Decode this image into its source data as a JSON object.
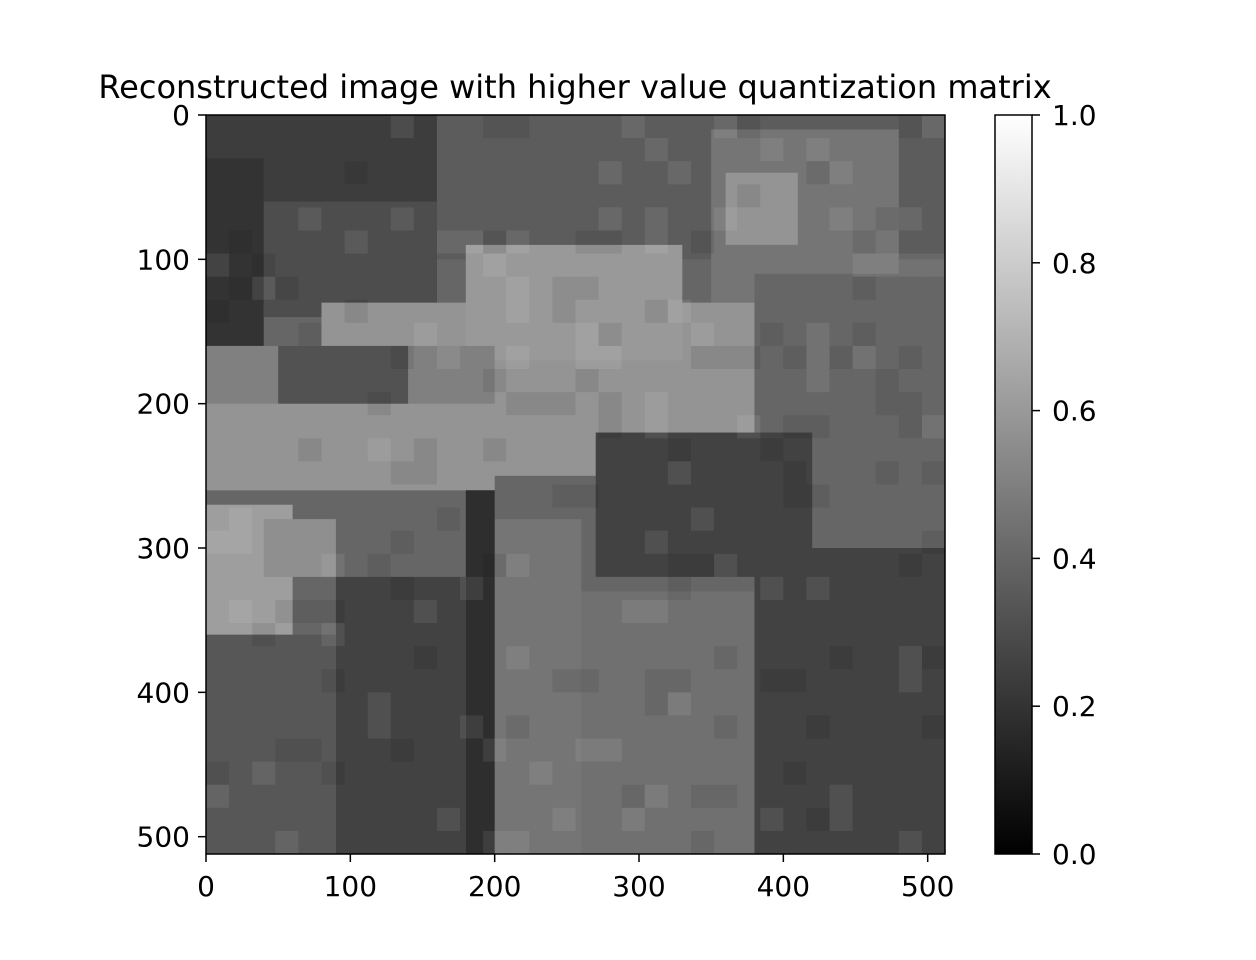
{
  "chart_data": {
    "type": "heatmap",
    "title": "Reconstructed image with higher value quantization matrix",
    "xlabel": "",
    "ylabel": "",
    "image_size": [
      512,
      512
    ],
    "xlim": [
      0,
      512
    ],
    "ylim": [
      512,
      0
    ],
    "x_ticks": [
      0,
      100,
      200,
      300,
      400,
      500
    ],
    "y_ticks": [
      0,
      100,
      200,
      300,
      400,
      500
    ],
    "colormap": "gray",
    "colorbar": {
      "range": [
        0.0,
        1.0
      ],
      "ticks": [
        "0.0",
        "0.2",
        "0.4",
        "0.6",
        "0.8",
        "1.0"
      ]
    },
    "grid": false,
    "block_size": 8,
    "regions": [
      {
        "x": [
          0,
          512
        ],
        "y": [
          0,
          512
        ],
        "value": 0.4
      },
      {
        "x": [
          0,
          160
        ],
        "y": [
          0,
          130
        ],
        "value": 0.24
      },
      {
        "x": [
          160,
          300
        ],
        "y": [
          0,
          100
        ],
        "value": 0.36
      },
      {
        "x": [
          300,
          512
        ],
        "y": [
          0,
          100
        ],
        "value": 0.36
      },
      {
        "x": [
          350,
          480
        ],
        "y": [
          10,
          140
        ],
        "value": 0.46
      },
      {
        "x": [
          360,
          410
        ],
        "y": [
          40,
          90
        ],
        "value": 0.58
      },
      {
        "x": [
          0,
          40
        ],
        "y": [
          30,
          160
        ],
        "value": 0.2
      },
      {
        "x": [
          40,
          160
        ],
        "y": [
          60,
          140
        ],
        "value": 0.3
      },
      {
        "x": [
          80,
          380
        ],
        "y": [
          130,
          250
        ],
        "value": 0.58
      },
      {
        "x": [
          180,
          330
        ],
        "y": [
          90,
          170
        ],
        "value": 0.6
      },
      {
        "x": [
          0,
          200
        ],
        "y": [
          160,
          260
        ],
        "value": 0.5
      },
      {
        "x": [
          0,
          200
        ],
        "y": [
          200,
          260
        ],
        "value": 0.58
      },
      {
        "x": [
          50,
          140
        ],
        "y": [
          160,
          200
        ],
        "value": 0.32
      },
      {
        "x": [
          380,
          512
        ],
        "y": [
          110,
          300
        ],
        "value": 0.4
      },
      {
        "x": [
          270,
          420
        ],
        "y": [
          220,
          320
        ],
        "value": 0.26
      },
      {
        "x": [
          200,
          260
        ],
        "y": [
          280,
          512
        ],
        "value": 0.46
      },
      {
        "x": [
          260,
          380
        ],
        "y": [
          330,
          512
        ],
        "value": 0.44
      },
      {
        "x": [
          380,
          512
        ],
        "y": [
          300,
          512
        ],
        "value": 0.26
      },
      {
        "x": [
          90,
          180
        ],
        "y": [
          320,
          512
        ],
        "value": 0.26
      },
      {
        "x": [
          0,
          90
        ],
        "y": [
          360,
          512
        ],
        "value": 0.34
      },
      {
        "x": [
          180,
          200
        ],
        "y": [
          260,
          512
        ],
        "value": 0.18
      },
      {
        "x": [
          0,
          60
        ],
        "y": [
          270,
          360
        ],
        "value": 0.62
      },
      {
        "x": [
          40,
          90
        ],
        "y": [
          280,
          320
        ],
        "value": 0.56
      }
    ]
  }
}
